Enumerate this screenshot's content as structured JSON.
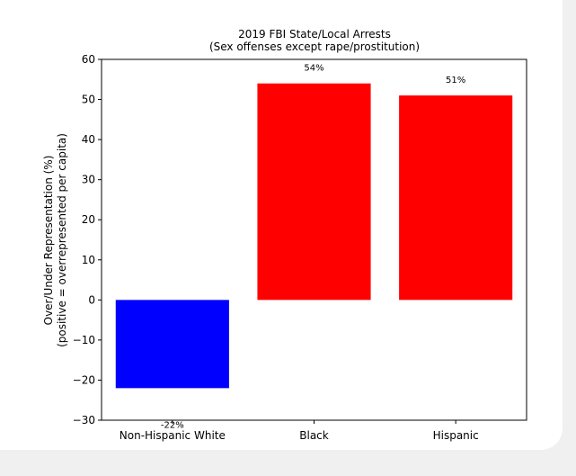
{
  "chart_data": {
    "type": "bar",
    "title": "2019 FBI State/Local Arrests",
    "subtitle": "(Sex offenses except rape/prostitution)",
    "ylabel_line1": "Over/Under Representation (%)",
    "ylabel_line2": "(positive = overrepresented per capita)",
    "xlabel": "",
    "categories": [
      "Non-Hispanic White",
      "Black",
      "Hispanic"
    ],
    "values": [
      -22,
      54,
      51
    ],
    "data_labels": [
      "-22%",
      "54%",
      "51%"
    ],
    "colors": [
      "#0000ff",
      "#ff0000",
      "#ff0000"
    ],
    "ylim": [
      -30,
      60
    ],
    "yticks": [
      -30,
      -20,
      -10,
      0,
      10,
      20,
      30,
      40,
      50,
      60
    ],
    "grid": false,
    "legend": "none"
  }
}
